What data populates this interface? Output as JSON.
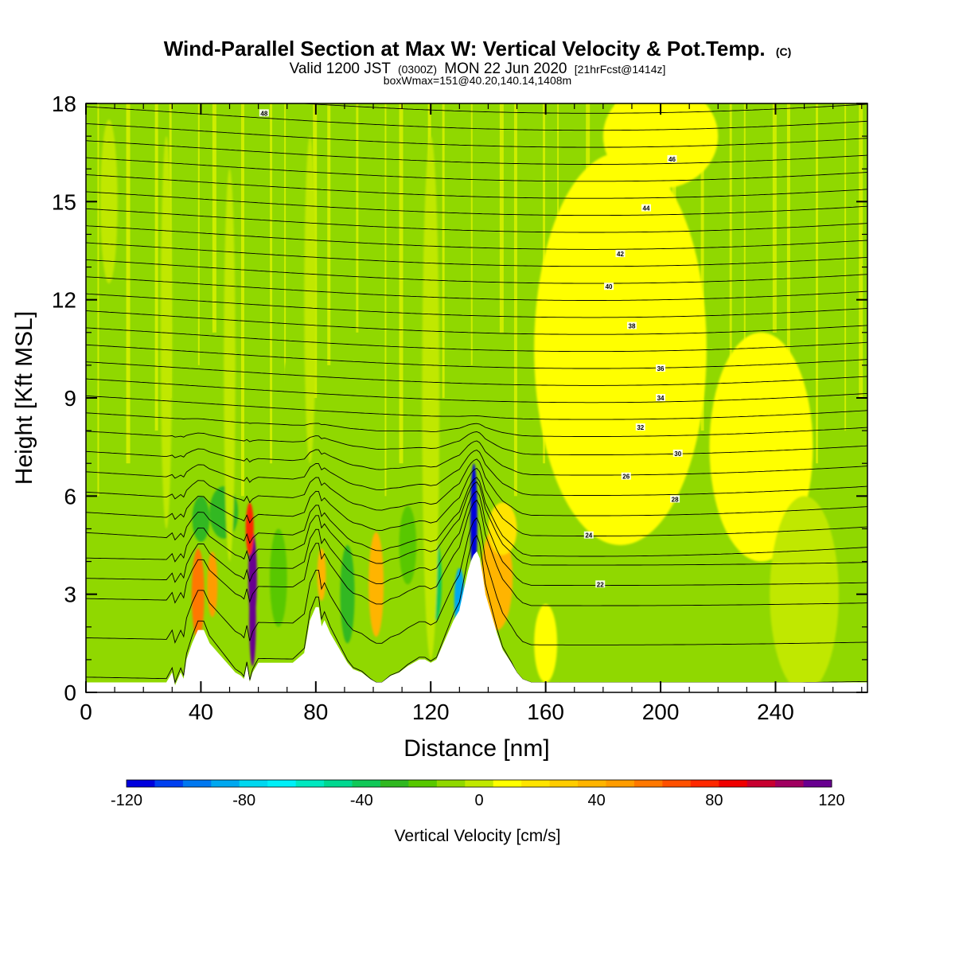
{
  "header": {
    "title": "Wind-Parallel Section at Max W: Vertical Velocity & Pot.Temp.",
    "copyright": "(C)",
    "valid_prefix": "Valid 1200 JST",
    "valid_utc": "(0300Z)",
    "valid_date": "MON 22 Jun 2020",
    "forecast": "[21hrFcst@1414z]",
    "box_info": "boxWmax=151@40.20,140.14,1408m"
  },
  "chart_data": {
    "type": "heatmap",
    "xlabel": "Distance [nm]",
    "ylabel": "Height [Kft MSL]",
    "xlim": [
      0,
      272
    ],
    "ylim": [
      0,
      18
    ],
    "x_ticks": [
      0,
      40,
      80,
      120,
      160,
      200,
      240
    ],
    "y_ticks": [
      0,
      3,
      6,
      9,
      12,
      15,
      18
    ],
    "grid": false,
    "terrain_profile": {
      "x": [
        0,
        28,
        30,
        31,
        33,
        34,
        35,
        37,
        39,
        41,
        43,
        46,
        49,
        52,
        54,
        55,
        56,
        57,
        58,
        60,
        64,
        68,
        72,
        76,
        78,
        80,
        81,
        82,
        83,
        84,
        85,
        87,
        89,
        91,
        93,
        96,
        99,
        101,
        103,
        106,
        109,
        112,
        114,
        116,
        118,
        120,
        122,
        124,
        126,
        128,
        130,
        131,
        132,
        133,
        134,
        135,
        136,
        137,
        138,
        139,
        141,
        143,
        145,
        148,
        150,
        152,
        155,
        158,
        160,
        165,
        272
      ],
      "y": [
        0.3,
        0.3,
        0.6,
        0.2,
        0.6,
        0.4,
        1.0,
        1.5,
        1.9,
        1.9,
        1.5,
        1.2,
        0.9,
        0.6,
        0.5,
        0.4,
        0.8,
        0.3,
        0.6,
        0.9,
        0.9,
        0.9,
        0.9,
        1.2,
        2.2,
        2.6,
        2.6,
        2.0,
        2.2,
        2.0,
        1.8,
        1.5,
        1.2,
        0.9,
        0.7,
        0.6,
        0.4,
        0.3,
        0.3,
        0.5,
        0.6,
        0.8,
        0.9,
        1.0,
        1.0,
        0.9,
        1.0,
        1.4,
        1.8,
        2.2,
        2.5,
        2.9,
        3.3,
        3.7,
        4.0,
        4.2,
        4.3,
        4.1,
        3.6,
        3.0,
        2.4,
        1.8,
        1.3,
        0.9,
        0.6,
        0.4,
        0.3,
        0.3,
        0.3,
        0.3,
        0.3
      ]
    },
    "theta_contours_K": [
      {
        "level": 22,
        "label_x": 179,
        "label_y": 3.3
      },
      {
        "level": 24,
        "label_x": 175,
        "label_y": 4.8
      },
      {
        "level": 26,
        "label_x": 188,
        "label_y": 6.6
      },
      {
        "level": 28,
        "label_x": 205,
        "label_y": 5.9
      },
      {
        "level": 30,
        "label_x": 206,
        "label_y": 7.3
      },
      {
        "level": 32,
        "label_x": 193,
        "label_y": 8.1
      },
      {
        "level": 34,
        "label_x": 200,
        "label_y": 9.0
      },
      {
        "level": 36,
        "label_x": 200,
        "label_y": 9.9
      },
      {
        "level": 38,
        "label_x": 190,
        "label_y": 11.2
      },
      {
        "level": 40,
        "label_x": 182,
        "label_y": 12.4
      },
      {
        "level": 42,
        "label_x": 186,
        "label_y": 13.4
      },
      {
        "level": 44,
        "label_x": 195,
        "label_y": 14.8
      },
      {
        "level": 46,
        "label_x": 204,
        "label_y": 16.3
      },
      {
        "level": 48,
        "label_x": 62,
        "label_y": 17.7
      }
    ],
    "vertical_velocity": {
      "name": "Vertical Velocity [cm/s]",
      "units": "cm/s",
      "min": -120,
      "max": 120,
      "max_value": 151,
      "background_value": -5,
      "cells": [
        {
          "x": 58,
          "y": 3.5,
          "sx": 1.5,
          "sy": 1.4,
          "value": 115
        },
        {
          "x": 58,
          "y": 2.2,
          "sx": 1.2,
          "sy": 1.4,
          "value": 150
        },
        {
          "x": 57,
          "y": 5.0,
          "sx": 1.4,
          "sy": 0.8,
          "value": 80
        },
        {
          "x": 39,
          "y": 3.0,
          "sx": 2.2,
          "sy": 1.4,
          "value": 55
        },
        {
          "x": 44,
          "y": 3.3,
          "sx": 1.8,
          "sy": 1.0,
          "value": 45
        },
        {
          "x": 82,
          "y": 3.6,
          "sx": 1.5,
          "sy": 0.8,
          "value": 35
        },
        {
          "x": 101,
          "y": 3.3,
          "sx": 2.6,
          "sy": 1.6,
          "value": 38
        },
        {
          "x": 143,
          "y": 3.5,
          "sx": 5.5,
          "sy": 1.6,
          "value": 42
        },
        {
          "x": 145,
          "y": 5.0,
          "sx": 5.0,
          "sy": 0.8,
          "value": 20
        },
        {
          "x": 160,
          "y": 1.5,
          "sx": 4.0,
          "sy": 1.2,
          "value": 12
        },
        {
          "x": 135,
          "y": 5.2,
          "sx": 1.2,
          "sy": 1.8,
          "value": -120
        },
        {
          "x": 130,
          "y": 2.8,
          "sx": 1.8,
          "sy": 1.0,
          "value": -85
        },
        {
          "x": 122,
          "y": 3.4,
          "sx": 1.8,
          "sy": 1.2,
          "value": -40
        },
        {
          "x": 48,
          "y": 5.5,
          "sx": 5.0,
          "sy": 0.8,
          "value": -28
        },
        {
          "x": 40,
          "y": 5.3,
          "sx": 3.0,
          "sy": 0.7,
          "value": -25
        },
        {
          "x": 67,
          "y": 3.5,
          "sx": 3.0,
          "sy": 1.5,
          "value": -22
        },
        {
          "x": 91,
          "y": 3.0,
          "sx": 2.5,
          "sy": 1.5,
          "value": -30
        },
        {
          "x": 112,
          "y": 4.5,
          "sx": 3.0,
          "sy": 1.2,
          "value": -22
        },
        {
          "x": 70,
          "y": 8.5,
          "sx": 2.0,
          "sy": 1.6,
          "value": -12
        },
        {
          "x": 186,
          "y": 10.5,
          "sx": 30,
          "sy": 6.0,
          "value": 6
        },
        {
          "x": 235,
          "y": 7.5,
          "sx": 18,
          "sy": 3.5,
          "value": 5
        },
        {
          "x": 200,
          "y": 17.0,
          "sx": 20,
          "sy": 1.6,
          "value": 5
        },
        {
          "x": 120,
          "y": 9.0,
          "sx": 3.0,
          "sy": 8.0,
          "value": 4
        },
        {
          "x": 50,
          "y": 10.0,
          "sx": 2.0,
          "sy": 6.0,
          "value": 4
        },
        {
          "x": 28,
          "y": 11.0,
          "sx": 2.0,
          "sy": 6.0,
          "value": 4
        },
        {
          "x": 78,
          "y": 12.0,
          "sx": 2.0,
          "sy": 5.0,
          "value": 4
        },
        {
          "x": 8,
          "y": 15.0,
          "sx": 3.0,
          "sy": 2.5,
          "value": 4
        },
        {
          "x": 250,
          "y": 3.0,
          "sx": 12,
          "sy": 3.0,
          "value": -4
        }
      ]
    },
    "colorbar": {
      "label": "Vertical Velocity [cm/s]",
      "ticks": [
        -120,
        -80,
        -40,
        0,
        40,
        80,
        120
      ],
      "bins": [
        -120,
        -110,
        -100,
        -90,
        -80,
        -70,
        -60,
        -50,
        -40,
        -30,
        -20,
        -10,
        0,
        10,
        20,
        30,
        40,
        50,
        60,
        70,
        80,
        90,
        100,
        110,
        120
      ],
      "colors": [
        "#0000dd",
        "#0040f0",
        "#0078f0",
        "#00a8f0",
        "#00d8f0",
        "#00f0f8",
        "#00e8c0",
        "#00d890",
        "#10c858",
        "#30b820",
        "#58c800",
        "#90d800",
        "#c0e800",
        "#ffff00",
        "#ffe400",
        "#ffcc00",
        "#ffb400",
        "#ff9c00",
        "#ff7800",
        "#ff5000",
        "#ff2800",
        "#f00000",
        "#c80030",
        "#a00060",
        "#680090"
      ]
    }
  }
}
